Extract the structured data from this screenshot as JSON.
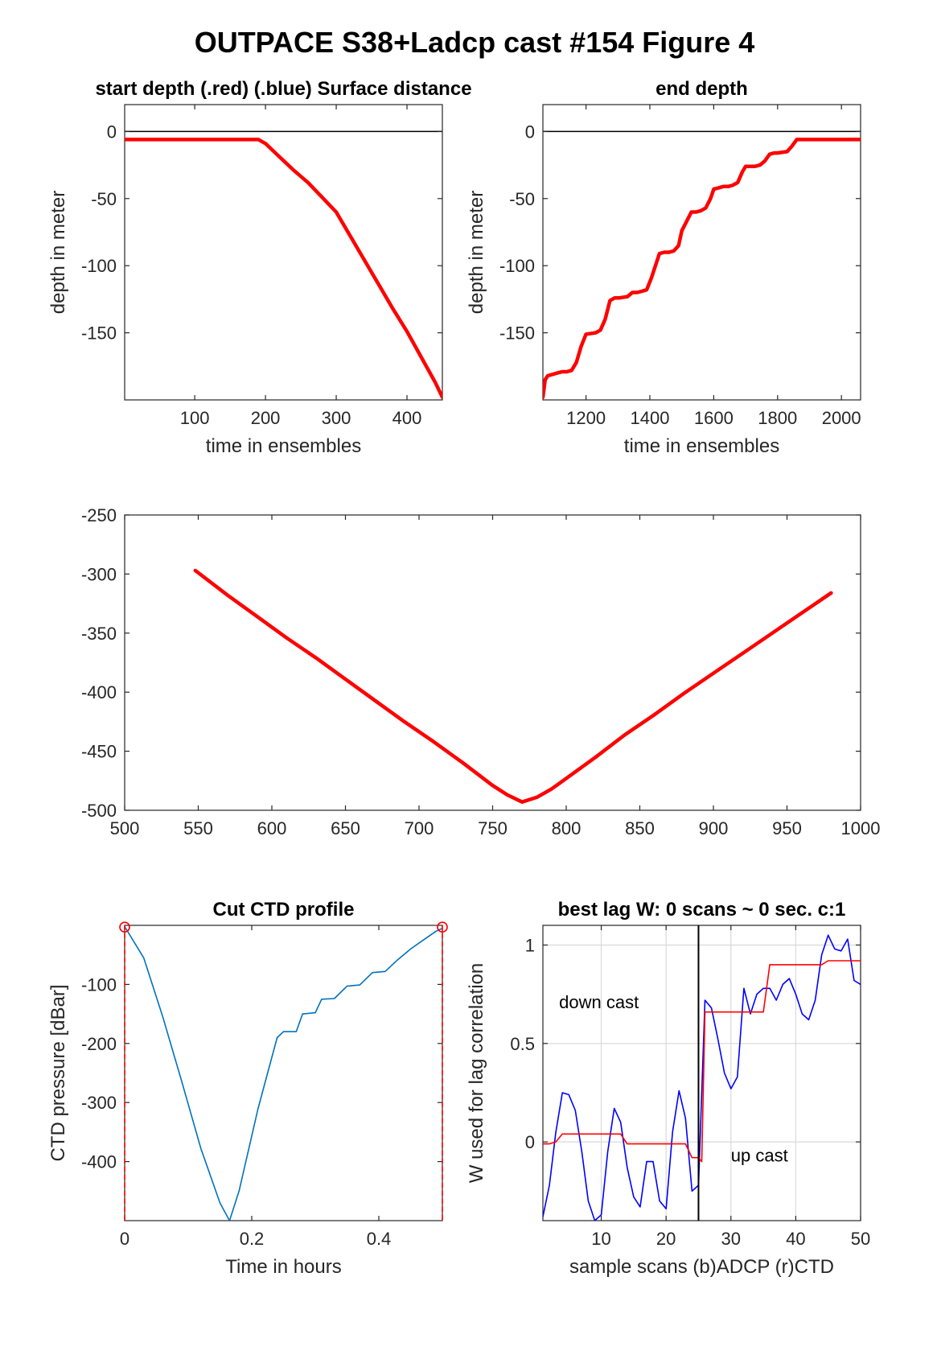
{
  "figure_title": "OUTPACE S38+Ladcp cast #154   Figure 4",
  "chart_data": [
    {
      "id": "start-depth",
      "type": "line",
      "title": "start depth (.red) (.blue) Surface distance",
      "xlabel": "time in ensembles",
      "ylabel": "depth in meter",
      "xlim": [
        1,
        450
      ],
      "ylim": [
        -200,
        20
      ],
      "xticks": [
        100,
        200,
        300,
        400
      ],
      "yticks": [
        0,
        -50,
        -100,
        -150
      ],
      "grid": false,
      "reference_line_y": 0,
      "series": [
        {
          "color": "#ff0000",
          "x": [
            1,
            50,
            100,
            150,
            190,
            200,
            220,
            240,
            260,
            280,
            300,
            320,
            340,
            360,
            380,
            400,
            420,
            440,
            450
          ],
          "y": [
            -6,
            -6,
            -6,
            -6,
            -6,
            -9,
            -19,
            -29,
            -38,
            -49,
            -60,
            -78,
            -96,
            -114,
            -132,
            -149,
            -168,
            -187,
            -198
          ]
        }
      ]
    },
    {
      "id": "end-depth",
      "type": "line",
      "title": "end depth",
      "xlabel": "time in ensembles",
      "ylabel": "depth in meter",
      "xlim": [
        1065,
        2060
      ],
      "ylim": [
        -200,
        20
      ],
      "xticks": [
        1200,
        1400,
        1600,
        1800,
        2000
      ],
      "yticks": [
        0,
        -50,
        -100,
        -150
      ],
      "grid": false,
      "reference_line_y": 0,
      "series": [
        {
          "color": "#ff0000",
          "x": [
            1065,
            1072,
            1080,
            1095,
            1110,
            1125,
            1140,
            1155,
            1170,
            1185,
            1200,
            1230,
            1245,
            1260,
            1275,
            1290,
            1305,
            1330,
            1345,
            1360,
            1375,
            1390,
            1405,
            1430,
            1445,
            1460,
            1475,
            1490,
            1500,
            1530,
            1545,
            1560,
            1575,
            1590,
            1600,
            1630,
            1645,
            1660,
            1675,
            1690,
            1700,
            1730,
            1745,
            1760,
            1775,
            1790,
            1800,
            1830,
            1845,
            1860,
            1875,
            1890,
            1905,
            1920,
            1935,
            1950,
            1990,
            2060
          ],
          "y": [
            -198,
            -185,
            -182,
            -181,
            -180,
            -179,
            -179,
            -178,
            -172,
            -160,
            -151,
            -150,
            -148,
            -140,
            -126,
            -124,
            -124,
            -123,
            -120,
            -120,
            -119,
            -118,
            -109,
            -91,
            -90,
            -90,
            -89,
            -85,
            -74,
            -60,
            -60,
            -59,
            -57,
            -50,
            -43,
            -41,
            -41,
            -40,
            -38,
            -30,
            -26,
            -26,
            -25,
            -22,
            -17,
            -16,
            -16,
            -15,
            -11,
            -6,
            -6,
            -6,
            -6,
            -6,
            -6,
            -6,
            -6,
            -6
          ]
        }
      ]
    },
    {
      "id": "depth-middle",
      "type": "line",
      "title": "",
      "xlabel": "",
      "ylabel": "",
      "xlim": [
        500,
        1000
      ],
      "ylim": [
        -500,
        -250
      ],
      "xticks": [
        500,
        550,
        600,
        650,
        700,
        750,
        800,
        850,
        900,
        950,
        1000
      ],
      "yticks": [
        -250,
        -300,
        -350,
        -400,
        -450,
        -500
      ],
      "grid": false,
      "series": [
        {
          "color": "#ff0000",
          "x": [
            548,
            570,
            590,
            610,
            630,
            650,
            670,
            690,
            710,
            730,
            750,
            760,
            770,
            780,
            790,
            800,
            820,
            840,
            860,
            880,
            900,
            920,
            940,
            960,
            980
          ],
          "y": [
            -297,
            -318,
            -336,
            -354,
            -371,
            -389,
            -407,
            -425,
            -442,
            -460,
            -479,
            -487,
            -493,
            -489,
            -482,
            -473,
            -455,
            -436,
            -419,
            -401,
            -384,
            -367,
            -350,
            -333,
            -316
          ]
        }
      ]
    },
    {
      "id": "cut-ctd-profile",
      "type": "line",
      "title": "Cut CTD profile",
      "xlabel": "Time in hours",
      "ylabel": "CTD pressure [dBar]",
      "xlim": [
        0,
        0.5
      ],
      "ylim": [
        -500,
        0
      ],
      "xticks": [
        0,
        0.2,
        0.4
      ],
      "xticklabels": [
        "0",
        "0.2",
        "0.4"
      ],
      "yticks": [
        -100,
        -200,
        -300,
        -400
      ],
      "grid": false,
      "cut_markers_x": [
        0,
        0.5
      ],
      "cut_markers_y": -3,
      "series": [
        {
          "color": "#0072bd",
          "x": [
            0,
            0.03,
            0.06,
            0.09,
            0.12,
            0.15,
            0.165,
            0.18,
            0.21,
            0.24,
            0.25,
            0.27,
            0.28,
            0.3,
            0.31,
            0.33,
            0.35,
            0.37,
            0.39,
            0.41,
            0.43,
            0.45,
            0.47,
            0.49,
            0.5
          ],
          "y": [
            -2,
            -55,
            -155,
            -265,
            -378,
            -470,
            -500,
            -450,
            -310,
            -190,
            -180,
            -180,
            -150,
            -148,
            -125,
            -124,
            -103,
            -101,
            -80,
            -78,
            -58,
            -40,
            -25,
            -10,
            -5
          ]
        }
      ]
    },
    {
      "id": "best-lag",
      "type": "line",
      "title": "best lag W: 0 scans ~ 0 sec.  c:1",
      "xlabel": "sample scans (b)ADCP (r)CTD",
      "ylabel": "W used for lag correlation",
      "xlim": [
        1,
        50
      ],
      "ylim": [
        -0.4,
        1.1
      ],
      "xticks": [
        10,
        20,
        30,
        40,
        50
      ],
      "yticks": [
        0,
        0.5,
        1
      ],
      "yticklabels": [
        "0",
        "0.5",
        "1"
      ],
      "grid": true,
      "vline_x": 25,
      "annotations": [
        {
          "text": "down cast",
          "x": 3.5,
          "y": 0.68
        },
        {
          "text": "up cast",
          "x": 30,
          "y": -0.1
        }
      ],
      "series": [
        {
          "color": "#0000ff",
          "x": [
            1,
            2,
            3,
            4,
            5,
            6,
            7,
            8,
            9,
            10,
            11,
            12,
            13,
            14,
            15,
            16,
            17,
            18,
            19,
            20,
            21,
            22,
            23,
            24,
            25,
            26,
            27,
            28,
            29,
            30,
            31,
            32,
            33,
            34,
            35,
            36,
            37,
            38,
            39,
            40,
            41,
            42,
            43,
            44,
            45,
            46,
            47,
            48,
            49,
            50
          ],
          "y": [
            -0.38,
            -0.22,
            0.05,
            0.25,
            0.24,
            0.16,
            -0.05,
            -0.3,
            -0.4,
            -0.37,
            -0.05,
            0.17,
            0.1,
            -0.13,
            -0.28,
            -0.33,
            -0.1,
            -0.1,
            -0.3,
            -0.34,
            0.05,
            0.26,
            0.12,
            -0.25,
            -0.22,
            0.72,
            0.68,
            0.52,
            0.35,
            0.27,
            0.33,
            0.78,
            0.65,
            0.75,
            0.78,
            0.78,
            0.72,
            0.8,
            0.83,
            0.75,
            0.65,
            0.62,
            0.72,
            0.95,
            1.05,
            0.98,
            0.97,
            1.03,
            0.82,
            0.8
          ]
        },
        {
          "color": "#ff0000",
          "x": [
            1,
            2,
            3,
            4,
            13,
            14,
            23,
            24,
            25,
            25.5,
            26,
            35,
            36,
            44,
            45,
            50
          ],
          "y": [
            -0.01,
            -0.01,
            0.0,
            0.04,
            0.04,
            -0.01,
            -0.01,
            -0.08,
            -0.08,
            -0.1,
            0.66,
            0.66,
            0.9,
            0.9,
            0.92,
            0.92
          ]
        }
      ]
    }
  ]
}
